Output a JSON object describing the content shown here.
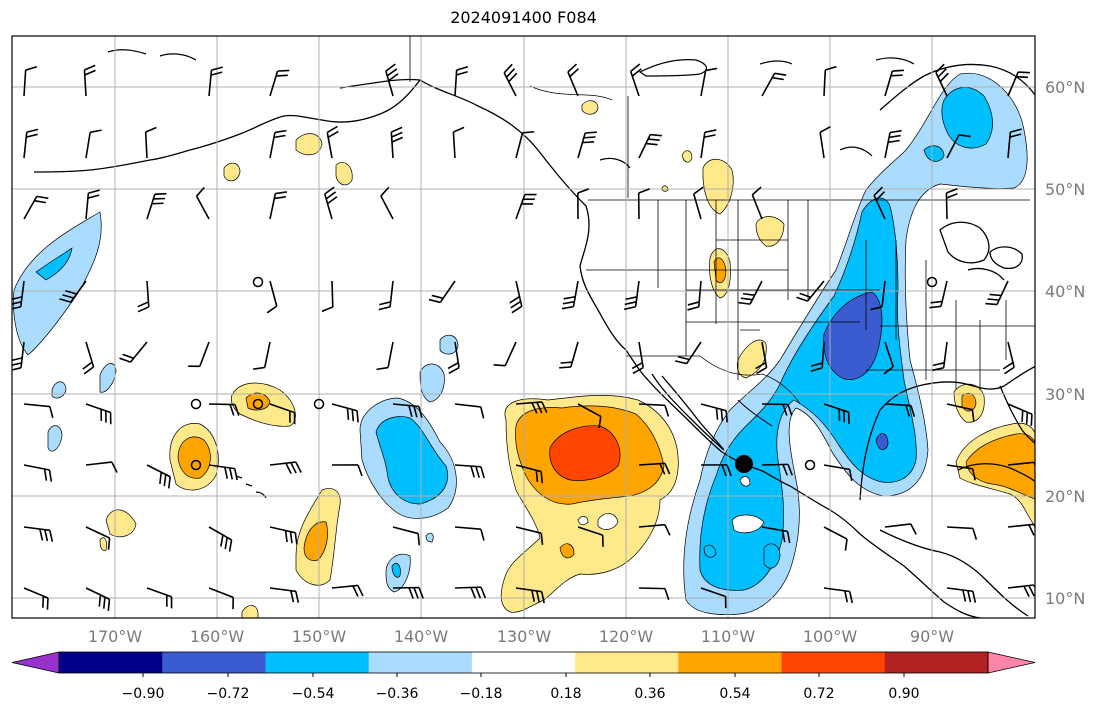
{
  "title": "2024091400 F084",
  "lon_labels": [
    "170°W",
    "160°W",
    "150°W",
    "140°W",
    "130°W",
    "120°W",
    "110°W",
    "100°W",
    "90°W"
  ],
  "lat_labels": [
    "60°N",
    "50°N",
    "40°N",
    "30°N",
    "20°N",
    "10°N"
  ],
  "colorbar": {
    "colors": [
      "#9932cc",
      "#00008b",
      "#3a5cd0",
      "#00bfff",
      "#aadcff",
      "#ffffff",
      "#ffe98a",
      "#ffa500",
      "#ff4500",
      "#b22222",
      "#ff85a8"
    ],
    "tick_labels": [
      "−0.90",
      "−0.72",
      "−0.54",
      "−0.36",
      "−0.18",
      "0.18",
      "0.36",
      "0.54",
      "0.72",
      "0.90"
    ]
  },
  "markers": [
    {
      "name": "storm-center-marker",
      "lon": -107.8,
      "lat": 23.0
    }
  ]
}
